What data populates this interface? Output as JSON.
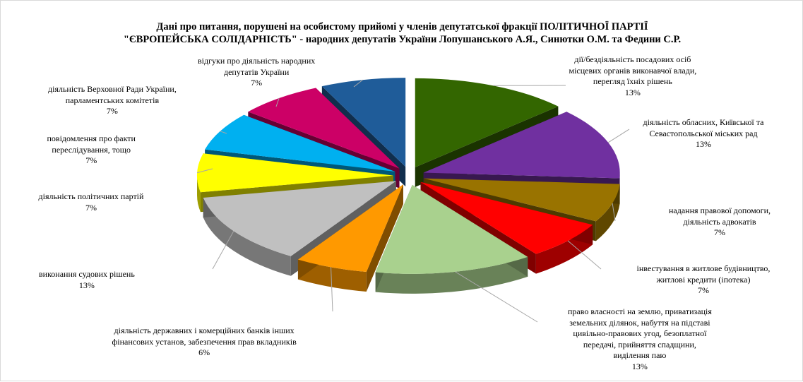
{
  "chart_data": {
    "type": "pie",
    "title": [
      "Дані про питання, порушені  на особистому прийомі у членів депутатської фракції ПОЛІТИЧНОЇ ПАРТІЇ",
      "\"ЄВРОПЕЙСЬКА СОЛІДАРНІСТЬ\"  - народних депутатів України Лопушанського А.Я., Синютки О.М. та Федини С.Р."
    ],
    "slices": [
      {
        "label": [
          "дії/бездіяльність  посадових осіб",
          "місцевих  органів виконавчої влади,",
          "перегляд їхніх  рішень"
        ],
        "value_label": "13%",
        "value": 13,
        "color": "#336600"
      },
      {
        "label": [
          "діяльність  обласних, Київської та",
          "Севастопольської міських рад"
        ],
        "value_label": "13%",
        "value": 13,
        "color": "#7030a0"
      },
      {
        "label": [
          "надання правової допомоги,",
          "діяльність  адвокатів"
        ],
        "value_label": "7%",
        "value": 7,
        "color": "#997300"
      },
      {
        "label": [
          "інвестування в житлове будівництво,",
          "житлові кредити (іпотека)"
        ],
        "value_label": "7%",
        "value": 7,
        "color": "#ff0000"
      },
      {
        "label": [
          "право власності на землю, приватизація",
          "земельних ділянок, набуття на підставі",
          "цивільно-правових угод, безоплатної",
          "передачі, прийняття спадщини,",
          "виділення  паю"
        ],
        "value_label": "13%",
        "value": 13,
        "color": "#a9d18e"
      },
      {
        "label": [
          "діяльність  державних і комерційних  банків інших",
          "фінансових  установ, забезпечення прав вкладників"
        ],
        "value_label": "6%",
        "value": 6,
        "color": "#ff9900"
      },
      {
        "label": [
          "виконання судових рішень"
        ],
        "value_label": "13%",
        "value": 13,
        "color": "#c0c0c0"
      },
      {
        "label": [
          "діяльність  політичних  партій"
        ],
        "value_label": "7%",
        "value": 7,
        "color": "#ffff00"
      },
      {
        "label": [
          "повідомлення про факти",
          "переслідування,  тощо"
        ],
        "value_label": "7%",
        "value": 7,
        "color": "#00b0f0"
      },
      {
        "label": [
          "діяльність  Верховної Ради України,",
          "парламентських  комітетів"
        ],
        "value_label": "7%",
        "value": 7,
        "color": "#cc0066"
      },
      {
        "label": [
          "відгуки про діяльність  народних",
          "депутатів  України"
        ],
        "value_label": "7%",
        "value": 7,
        "color": "#1f5c99"
      }
    ]
  }
}
